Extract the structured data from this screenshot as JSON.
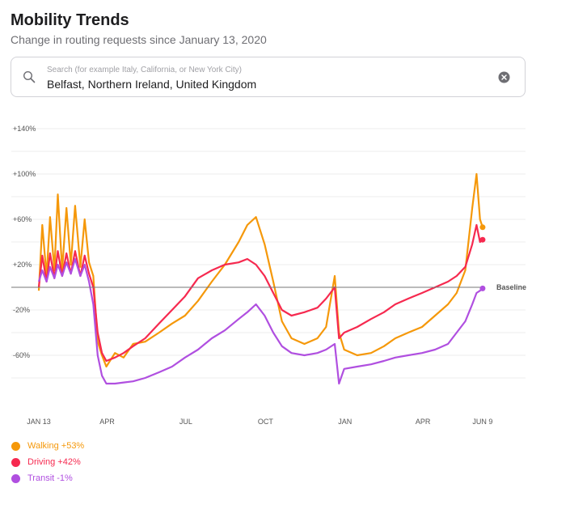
{
  "header": {
    "title": "Mobility Trends",
    "subtitle": "Change in routing requests since January 13, 2020"
  },
  "search": {
    "placeholder": "Search (for example Italy, California, or New York City)",
    "value": "Belfast, Northern Ireland, United Kingdom",
    "icon": "search-icon",
    "clear_icon": "close-icon"
  },
  "colors": {
    "walking": "#f5980a",
    "driving": "#f6294f",
    "transit": "#b04fe0",
    "grid": "#eeeeee",
    "baseline": "#777777",
    "tick_text": "#555555"
  },
  "legend": [
    {
      "name": "Walking +53%",
      "color": "#f5980a"
    },
    {
      "name": "Driving +42%",
      "color": "#f6294f"
    },
    {
      "name": "Transit -1%",
      "color": "#b04fe0"
    }
  ],
  "chart_data": {
    "type": "line",
    "baseline_label": "Baseline",
    "x_range": [
      "2020-01-13",
      "2021-06-10"
    ],
    "y_range": [
      -100,
      145
    ],
    "grid": true,
    "legend_position": "bottom-left",
    "x_ticks": [
      {
        "label": "JAN 13",
        "date": "2020-01-13"
      },
      {
        "label": "APR",
        "date": "2020-04-01"
      },
      {
        "label": "JUL",
        "date": "2020-07-01"
      },
      {
        "label": "OCT",
        "date": "2020-10-01"
      },
      {
        "label": "JAN",
        "date": "2021-01-01"
      },
      {
        "label": "APR",
        "date": "2021-04-01"
      },
      {
        "label": "JUN 9",
        "date": "2021-06-09"
      }
    ],
    "y_ticks": [
      {
        "label": "+140%",
        "value": 140
      },
      {
        "label": "+100%",
        "value": 100
      },
      {
        "label": "+60%",
        "value": 60
      },
      {
        "label": "+20%",
        "value": 20
      },
      {
        "label": "-20%",
        "value": -20
      },
      {
        "label": "-60%",
        "value": -60
      }
    ],
    "series": [
      {
        "name": "Walking +53%",
        "color": "#f5980a",
        "points": [
          [
            "2020-01-13",
            -3
          ],
          [
            "2020-01-17",
            55
          ],
          [
            "2020-01-22",
            10
          ],
          [
            "2020-01-26",
            62
          ],
          [
            "2020-01-31",
            15
          ],
          [
            "2020-02-04",
            82
          ],
          [
            "2020-02-09",
            15
          ],
          [
            "2020-02-14",
            70
          ],
          [
            "2020-02-19",
            20
          ],
          [
            "2020-02-24",
            72
          ],
          [
            "2020-03-01",
            18
          ],
          [
            "2020-03-06",
            60
          ],
          [
            "2020-03-11",
            22
          ],
          [
            "2020-03-16",
            10
          ],
          [
            "2020-03-21",
            -48
          ],
          [
            "2020-03-26",
            -60
          ],
          [
            "2020-03-31",
            -70
          ],
          [
            "2020-04-10",
            -58
          ],
          [
            "2020-04-20",
            -62
          ],
          [
            "2020-05-01",
            -50
          ],
          [
            "2020-05-15",
            -48
          ],
          [
            "2020-05-31",
            -40
          ],
          [
            "2020-06-15",
            -32
          ],
          [
            "2020-06-30",
            -25
          ],
          [
            "2020-07-15",
            -12
          ],
          [
            "2020-07-31",
            5
          ],
          [
            "2020-08-15",
            20
          ],
          [
            "2020-08-31",
            40
          ],
          [
            "2020-09-10",
            55
          ],
          [
            "2020-09-20",
            62
          ],
          [
            "2020-09-30",
            38
          ],
          [
            "2020-10-10",
            5
          ],
          [
            "2020-10-20",
            -30
          ],
          [
            "2020-10-31",
            -45
          ],
          [
            "2020-11-15",
            -50
          ],
          [
            "2020-11-30",
            -45
          ],
          [
            "2020-12-10",
            -35
          ],
          [
            "2020-12-20",
            10
          ],
          [
            "2020-12-25",
            -40
          ],
          [
            "2020-12-31",
            -55
          ],
          [
            "2021-01-15",
            -60
          ],
          [
            "2021-01-31",
            -58
          ],
          [
            "2021-02-15",
            -52
          ],
          [
            "2021-02-28",
            -45
          ],
          [
            "2021-03-15",
            -40
          ],
          [
            "2021-03-31",
            -35
          ],
          [
            "2021-04-15",
            -25
          ],
          [
            "2021-04-30",
            -15
          ],
          [
            "2021-05-10",
            -5
          ],
          [
            "2021-05-20",
            15
          ],
          [
            "2021-05-28",
            70
          ],
          [
            "2021-06-02",
            100
          ],
          [
            "2021-06-06",
            60
          ],
          [
            "2021-06-09",
            53
          ]
        ]
      },
      {
        "name": "Driving +42%",
        "color": "#f6294f",
        "points": [
          [
            "2020-01-13",
            0
          ],
          [
            "2020-01-17",
            28
          ],
          [
            "2020-01-22",
            5
          ],
          [
            "2020-01-26",
            30
          ],
          [
            "2020-01-31",
            8
          ],
          [
            "2020-02-04",
            32
          ],
          [
            "2020-02-09",
            10
          ],
          [
            "2020-02-14",
            30
          ],
          [
            "2020-02-19",
            12
          ],
          [
            "2020-02-24",
            32
          ],
          [
            "2020-03-01",
            10
          ],
          [
            "2020-03-06",
            28
          ],
          [
            "2020-03-11",
            12
          ],
          [
            "2020-03-16",
            0
          ],
          [
            "2020-03-21",
            -40
          ],
          [
            "2020-03-26",
            -58
          ],
          [
            "2020-03-31",
            -65
          ],
          [
            "2020-04-10",
            -62
          ],
          [
            "2020-04-20",
            -58
          ],
          [
            "2020-05-01",
            -52
          ],
          [
            "2020-05-15",
            -45
          ],
          [
            "2020-05-31",
            -32
          ],
          [
            "2020-06-15",
            -20
          ],
          [
            "2020-06-30",
            -8
          ],
          [
            "2020-07-15",
            8
          ],
          [
            "2020-07-31",
            15
          ],
          [
            "2020-08-15",
            20
          ],
          [
            "2020-08-31",
            22
          ],
          [
            "2020-09-10",
            25
          ],
          [
            "2020-09-20",
            20
          ],
          [
            "2020-09-30",
            10
          ],
          [
            "2020-10-10",
            -5
          ],
          [
            "2020-10-20",
            -20
          ],
          [
            "2020-10-31",
            -25
          ],
          [
            "2020-11-15",
            -22
          ],
          [
            "2020-11-30",
            -18
          ],
          [
            "2020-12-10",
            -10
          ],
          [
            "2020-12-20",
            0
          ],
          [
            "2020-12-25",
            -45
          ],
          [
            "2020-12-31",
            -40
          ],
          [
            "2021-01-15",
            -35
          ],
          [
            "2021-01-31",
            -28
          ],
          [
            "2021-02-15",
            -22
          ],
          [
            "2021-02-28",
            -15
          ],
          [
            "2021-03-15",
            -10
          ],
          [
            "2021-03-31",
            -5
          ],
          [
            "2021-04-15",
            0
          ],
          [
            "2021-04-30",
            5
          ],
          [
            "2021-05-10",
            10
          ],
          [
            "2021-05-20",
            18
          ],
          [
            "2021-05-28",
            38
          ],
          [
            "2021-06-02",
            55
          ],
          [
            "2021-06-06",
            40
          ],
          [
            "2021-06-09",
            42
          ]
        ]
      },
      {
        "name": "Transit -1%",
        "color": "#b04fe0",
        "points": [
          [
            "2020-01-13",
            5
          ],
          [
            "2020-01-17",
            15
          ],
          [
            "2020-01-22",
            5
          ],
          [
            "2020-01-26",
            18
          ],
          [
            "2020-01-31",
            8
          ],
          [
            "2020-02-04",
            20
          ],
          [
            "2020-02-09",
            10
          ],
          [
            "2020-02-14",
            22
          ],
          [
            "2020-02-19",
            12
          ],
          [
            "2020-02-24",
            25
          ],
          [
            "2020-03-01",
            10
          ],
          [
            "2020-03-06",
            20
          ],
          [
            "2020-03-11",
            5
          ],
          [
            "2020-03-16",
            -15
          ],
          [
            "2020-03-21",
            -60
          ],
          [
            "2020-03-26",
            -78
          ],
          [
            "2020-03-31",
            -85
          ],
          [
            "2020-04-10",
            -85
          ],
          [
            "2020-04-20",
            -84
          ],
          [
            "2020-05-01",
            -83
          ],
          [
            "2020-05-15",
            -80
          ],
          [
            "2020-05-31",
            -75
          ],
          [
            "2020-06-15",
            -70
          ],
          [
            "2020-06-30",
            -62
          ],
          [
            "2020-07-15",
            -55
          ],
          [
            "2020-07-31",
            -45
          ],
          [
            "2020-08-15",
            -38
          ],
          [
            "2020-08-31",
            -28
          ],
          [
            "2020-09-10",
            -22
          ],
          [
            "2020-09-20",
            -15
          ],
          [
            "2020-09-30",
            -25
          ],
          [
            "2020-10-10",
            -40
          ],
          [
            "2020-10-20",
            -52
          ],
          [
            "2020-10-31",
            -58
          ],
          [
            "2020-11-15",
            -60
          ],
          [
            "2020-11-30",
            -58
          ],
          [
            "2020-12-10",
            -55
          ],
          [
            "2020-12-20",
            -50
          ],
          [
            "2020-12-25",
            -85
          ],
          [
            "2020-12-31",
            -72
          ],
          [
            "2021-01-15",
            -70
          ],
          [
            "2021-01-31",
            -68
          ],
          [
            "2021-02-15",
            -65
          ],
          [
            "2021-02-28",
            -62
          ],
          [
            "2021-03-15",
            -60
          ],
          [
            "2021-03-31",
            -58
          ],
          [
            "2021-04-15",
            -55
          ],
          [
            "2021-04-30",
            -50
          ],
          [
            "2021-05-10",
            -40
          ],
          [
            "2021-05-20",
            -30
          ],
          [
            "2021-05-28",
            -15
          ],
          [
            "2021-06-02",
            -5
          ],
          [
            "2021-06-06",
            -3
          ],
          [
            "2021-06-09",
            -1
          ]
        ]
      }
    ]
  }
}
